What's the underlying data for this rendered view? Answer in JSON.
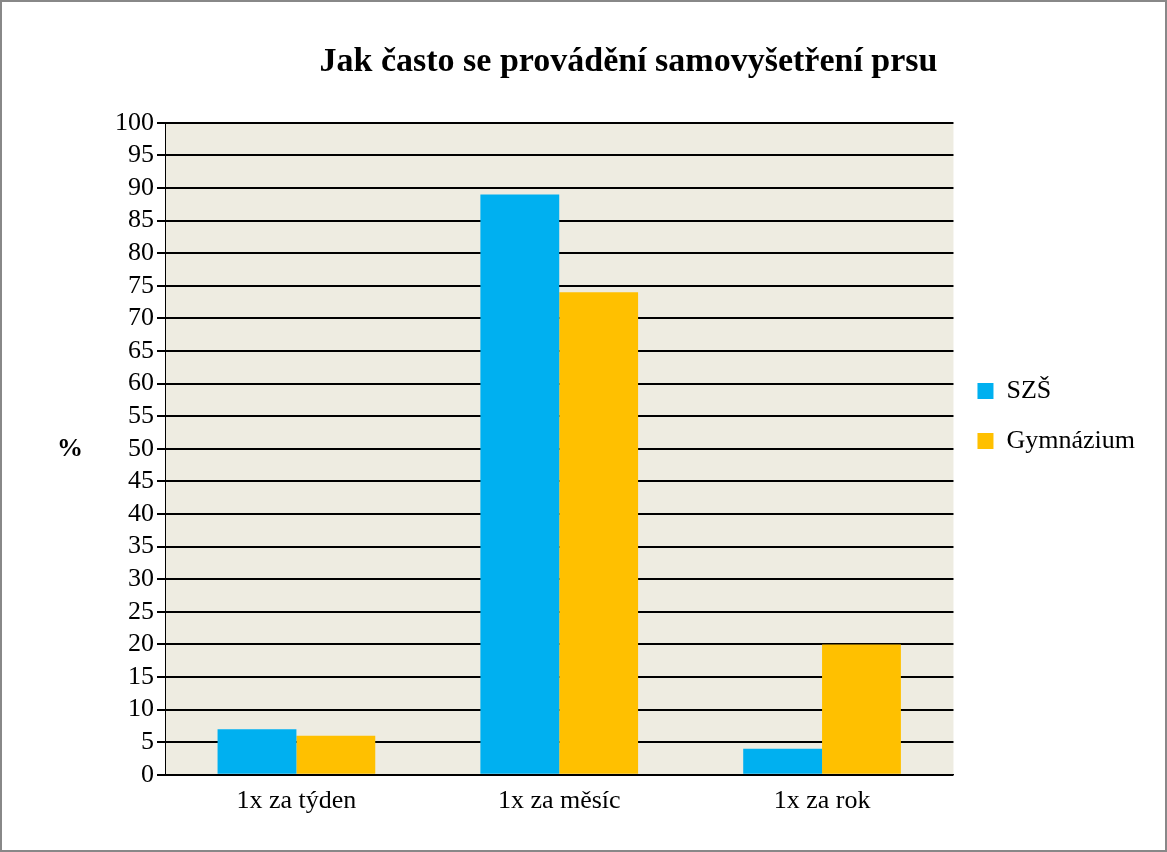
{
  "chart_data": {
    "type": "bar",
    "title": "Jak často se provádění samovyšetření prsu",
    "ylabel": "%",
    "categories": [
      "1x za týden",
      "1x za měsíc",
      "1x za rok"
    ],
    "series": [
      {
        "name": "SZŠ",
        "color": "#00b0f0",
        "values": [
          7,
          89,
          4
        ]
      },
      {
        "name": "Gymnázium",
        "color": "#ffc000",
        "values": [
          6,
          74,
          20
        ]
      }
    ],
    "ylim": [
      0,
      100
    ],
    "yticks": [
      0,
      5,
      10,
      15,
      20,
      25,
      30,
      35,
      40,
      45,
      50,
      55,
      60,
      65,
      70,
      75,
      80,
      85,
      90,
      95,
      100
    ],
    "grid": "y",
    "legend": "right"
  }
}
